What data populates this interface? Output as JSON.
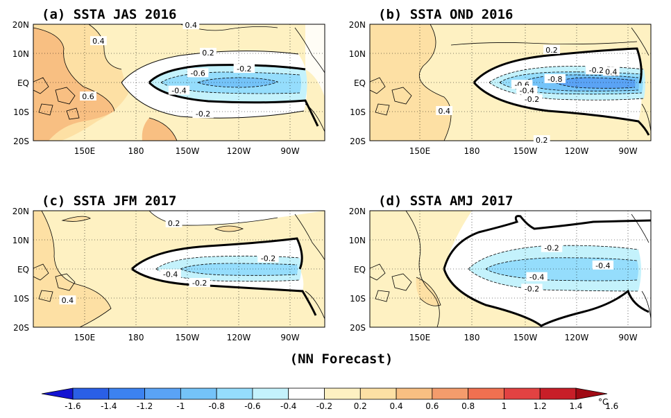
{
  "caption": "(NN Forecast)",
  "colorbar": {
    "unit": "°C",
    "ticks": [
      "-1.6",
      "-1.4",
      "-1.2",
      "-1",
      "-0.8",
      "-0.6",
      "-0.4",
      "-0.2",
      "0.2",
      "0.4",
      "0.6",
      "0.8",
      "1",
      "1.2",
      "1.4",
      "1.6"
    ],
    "colors": [
      "#1414d2",
      "#2a5fe6",
      "#3c82f0",
      "#5aa3f5",
      "#74c3f8",
      "#95ddfc",
      "#c4f2fc",
      "#ffffff",
      "#fef1c2",
      "#fde0a4",
      "#f8bf82",
      "#f49c6c",
      "#f07050",
      "#e24242",
      "#c81e28",
      "#a00a14"
    ]
  },
  "chart_data": [
    {
      "type": "heatmap",
      "title": "(a) SSTA  JAS 2016",
      "x_ticks": [
        "150E",
        "180",
        "150W",
        "120W",
        "90W"
      ],
      "y_ticks": [
        "20N",
        "10N",
        "EQ",
        "10S",
        "20S"
      ],
      "x_range": [
        120,
        290
      ],
      "y_range": [
        -20,
        20
      ],
      "contour_labels": [
        {
          "text": "0.4",
          "lon": 158,
          "lat": 14
        },
        {
          "text": "0.4",
          "lon": 212,
          "lat": 19.5
        },
        {
          "text": "0.6",
          "lon": 152,
          "lat": -5
        },
        {
          "text": "0.2",
          "lon": 222,
          "lat": 10
        },
        {
          "text": "-0.6",
          "lon": 216,
          "lat": 3
        },
        {
          "text": "-0.2",
          "lon": 243,
          "lat": 4.5
        },
        {
          "text": "-0.4",
          "lon": 205,
          "lat": -3
        },
        {
          "text": "-0.2",
          "lon": 219,
          "lat": -11
        }
      ]
    },
    {
      "type": "heatmap",
      "title": "(b) SSTA  OND 2016",
      "x_ticks": [
        "150E",
        "180",
        "150W",
        "120W",
        "90W"
      ],
      "y_ticks": [
        "20N",
        "10N",
        "EQ",
        "10S",
        "20S"
      ],
      "x_range": [
        120,
        290
      ],
      "y_range": [
        -20,
        20
      ],
      "contour_labels": [
        {
          "text": "0.2",
          "lon": 230,
          "lat": 11
        },
        {
          "text": "-0.2",
          "lon": 257,
          "lat": 4
        },
        {
          "text": "0.4",
          "lon": 266,
          "lat": 3.5
        },
        {
          "text": "-0.6",
          "lon": 212,
          "lat": -1
        },
        {
          "text": "-0.8",
          "lon": 232,
          "lat": 1
        },
        {
          "text": "-0.4",
          "lon": 215,
          "lat": -3
        },
        {
          "text": "-0.2",
          "lon": 218,
          "lat": -6
        },
        {
          "text": "0.4",
          "lon": 165,
          "lat": -10
        },
        {
          "text": "0.2",
          "lon": 224,
          "lat": -20
        }
      ]
    },
    {
      "type": "heatmap",
      "title": "(c) SSTA  JFM 2017",
      "x_ticks": [
        "150E",
        "180",
        "150W",
        "120W",
        "90W"
      ],
      "y_ticks": [
        "20N",
        "10N",
        "EQ",
        "10S",
        "20S"
      ],
      "x_range": [
        120,
        290
      ],
      "y_range": [
        -20,
        20
      ],
      "contour_labels": [
        {
          "text": "0.2",
          "lon": 202,
          "lat": 15.5
        },
        {
          "text": "-0.2",
          "lon": 257,
          "lat": 3.5
        },
        {
          "text": "-0.4",
          "lon": 200,
          "lat": -2
        },
        {
          "text": "-0.2",
          "lon": 217,
          "lat": -5
        },
        {
          "text": "0.4",
          "lon": 140,
          "lat": -11
        }
      ]
    },
    {
      "type": "heatmap",
      "title": "(d) SSTA  AMJ 2017",
      "x_ticks": [
        "150E",
        "180",
        "150W",
        "120W",
        "90W"
      ],
      "y_ticks": [
        "20N",
        "10N",
        "EQ",
        "10S",
        "20S"
      ],
      "x_range": [
        120,
        290
      ],
      "y_range": [
        -20,
        20
      ],
      "contour_labels": [
        {
          "text": "-0.2",
          "lon": 230,
          "lat": 7
        },
        {
          "text": "-0.4",
          "lon": 261,
          "lat": 1
        },
        {
          "text": "-0.4",
          "lon": 221,
          "lat": -3
        },
        {
          "text": "-0.2",
          "lon": 218,
          "lat": -7
        }
      ]
    }
  ]
}
